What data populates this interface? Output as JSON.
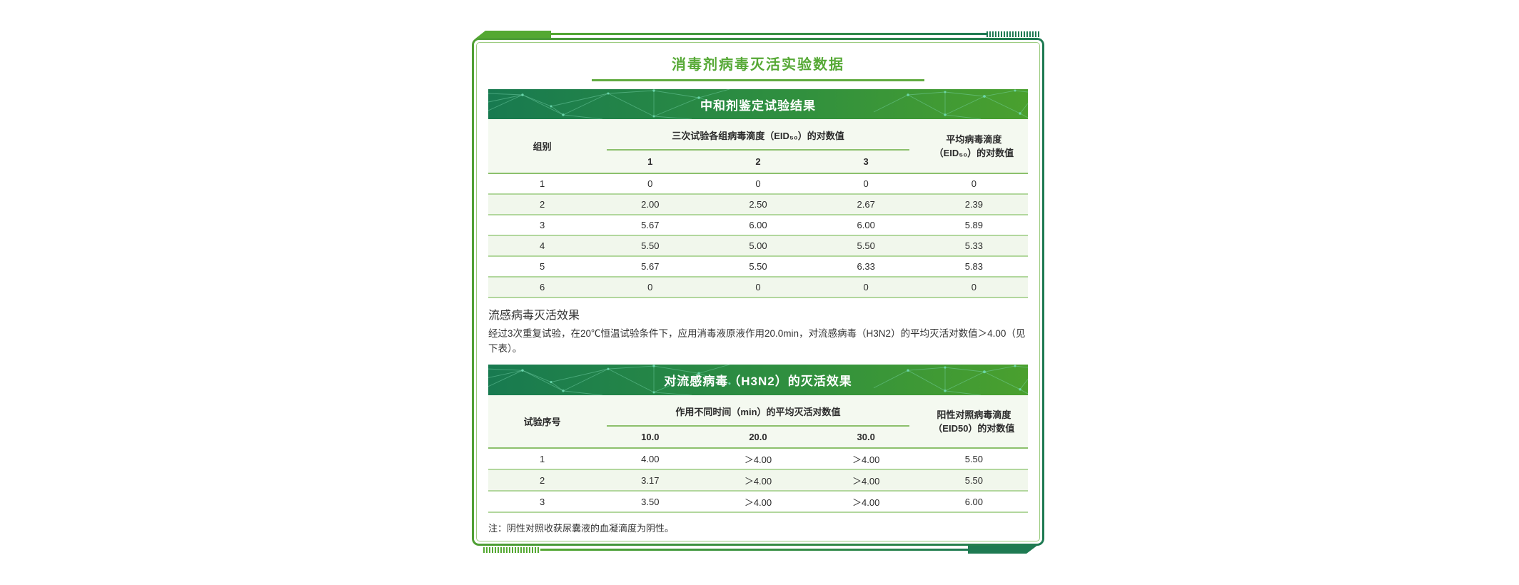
{
  "page": {
    "title": "消毒剂病毒灭活实验数据"
  },
  "colors": {
    "accent_green": "#56a936",
    "dark_green": "#1e7a52",
    "bar_gradient_left": "#187a50",
    "bar_gradient_right": "#4aa02e",
    "row_tint": "#f1f7ec",
    "header_bg": "#f4f9f0"
  },
  "table1": {
    "bar_title": "中和剂鉴定试验结果",
    "col_group": "组别",
    "span_header": "三次试验各组病毒滴度（EID₅₀）的对数值",
    "subcols": [
      "1",
      "2",
      "3"
    ],
    "avg_header": "平均病毒滴度\n（EID₅₀）的对数值",
    "rows": [
      [
        "1",
        "0",
        "0",
        "0",
        "0"
      ],
      [
        "2",
        "2.00",
        "2.50",
        "2.67",
        "2.39"
      ],
      [
        "3",
        "5.67",
        "6.00",
        "6.00",
        "5.89"
      ],
      [
        "4",
        "5.50",
        "5.00",
        "5.50",
        "5.33"
      ],
      [
        "5",
        "5.67",
        "5.50",
        "6.33",
        "5.83"
      ],
      [
        "6",
        "0",
        "0",
        "0",
        "0"
      ]
    ]
  },
  "section2": {
    "heading": "流感病毒灭活效果",
    "paragraph": "经过3次重复试验，在20℃恒温试验条件下，应用消毒液原液作用20.0min，对流感病毒（H3N2）的平均灭活对数值＞4.00（见下表）。"
  },
  "table2": {
    "bar_title": "对流感病毒（H3N2）的灭活效果",
    "col_group": "试验序号",
    "span_header": "作用不同时间（min）的平均灭活对数值",
    "subcols": [
      "10.0",
      "20.0",
      "30.0"
    ],
    "avg_header": "阳性对照病毒滴度\n（EID50）的对数值",
    "rows": [
      [
        "1",
        "4.00",
        "＞4.00",
        "＞4.00",
        "5.50"
      ],
      [
        "2",
        "3.17",
        "＞4.00",
        "＞4.00",
        "5.50"
      ],
      [
        "3",
        "3.50",
        "＞4.00",
        "＞4.00",
        "6.00"
      ]
    ]
  },
  "note": "注：阴性对照收获尿囊液的血凝滴度为阴性。"
}
